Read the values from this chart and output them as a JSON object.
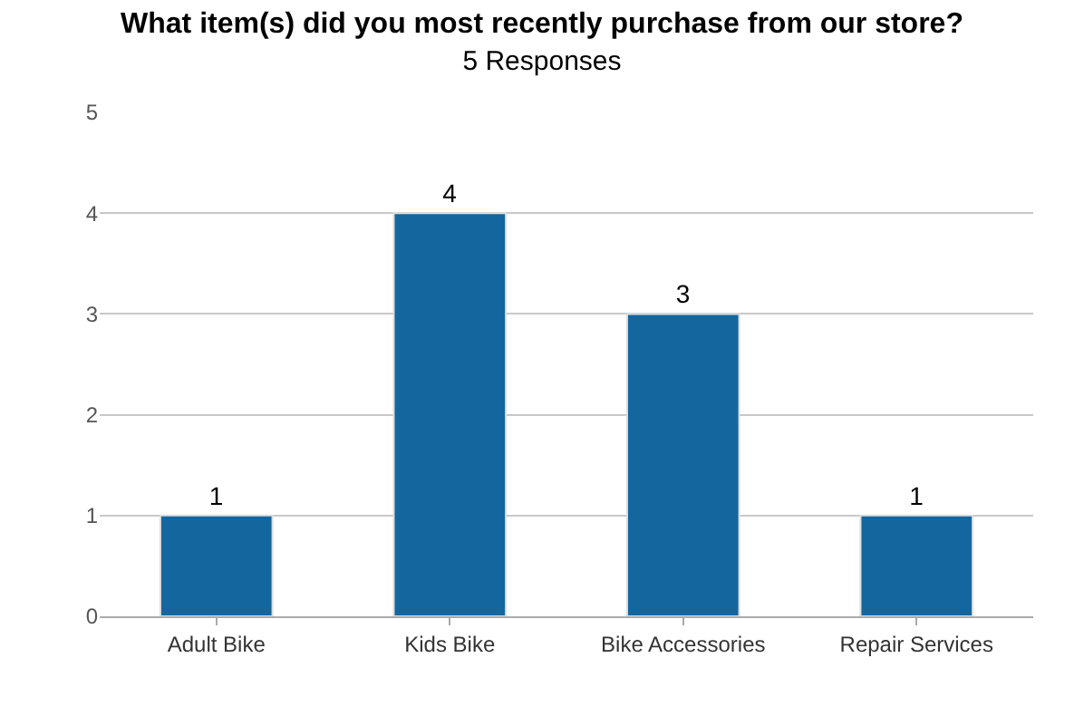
{
  "chart_data": {
    "type": "bar",
    "title": "What item(s) did you most recently purchase from our store?",
    "subtitle": "5 Responses",
    "categories": [
      "Adult Bike",
      "Kids Bike",
      "Bike Accessories",
      "Repair Services"
    ],
    "values": [
      1,
      4,
      3,
      1
    ],
    "color": "#14669f",
    "ylim": [
      0,
      5
    ],
    "yticks": [
      0,
      1,
      2,
      3,
      4,
      5
    ],
    "grid": "y",
    "data_labels": true
  }
}
